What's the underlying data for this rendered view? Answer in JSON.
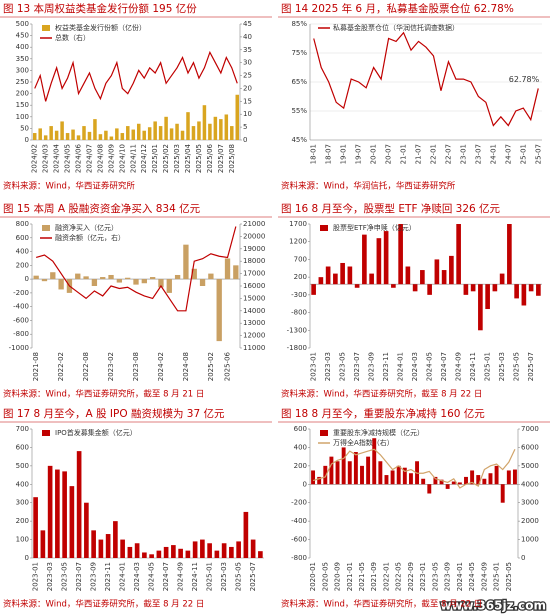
{
  "chart_data": [
    {
      "type": "combo",
      "title": "图 13 本周权益类基金发行份额 195 亿份",
      "source": "资料来源：Wind，华西证券研究所",
      "categories": [
        "2024/02",
        null,
        "2024/03",
        null,
        "2024/04",
        null,
        "2024/05",
        null,
        "2024/06",
        null,
        "2024/07",
        null,
        "2024/08",
        null,
        "2024/09",
        null,
        "2024/10",
        null,
        "2024/11",
        null,
        "2024/12",
        null,
        "2025/01",
        null,
        "2025/02",
        null,
        "2025/03",
        null,
        "2025/04",
        null,
        "2025/05",
        null,
        "2025/06",
        null,
        "2025/07",
        null,
        "2025/08",
        null
      ],
      "series": [
        {
          "name": "权益类基金发行份额（亿份）",
          "type": "bar",
          "color": "#d9a520",
          "values": [
            30,
            50,
            20,
            60,
            40,
            80,
            30,
            45,
            20,
            60,
            35,
            90,
            25,
            40,
            15,
            50,
            30,
            60,
            45,
            70,
            40,
            55,
            80,
            60,
            100,
            50,
            70,
            40,
            120,
            60,
            80,
            150,
            70,
            100,
            90,
            110,
            60,
            195
          ]
        },
        {
          "name": "总数（右）",
          "type": "line",
          "axis": "y2",
          "color": "#c00000",
          "values": [
            20,
            25,
            15,
            22,
            28,
            20,
            24,
            30,
            18,
            22,
            26,
            20,
            16,
            22,
            25,
            30,
            20,
            18,
            22,
            27,
            24,
            28,
            26,
            30,
            22,
            25,
            28,
            32,
            26,
            30,
            24,
            28,
            34,
            30,
            26,
            32,
            28,
            22
          ]
        }
      ],
      "ylim": [
        0,
        500
      ],
      "yticks": [
        0,
        50,
        100,
        150,
        200,
        250,
        300,
        350,
        400,
        450,
        500
      ],
      "y2lim": [
        0,
        45
      ],
      "y2ticks": [
        0,
        5,
        10,
        15,
        20,
        25,
        30,
        35,
        40,
        45
      ],
      "grid": false
    },
    {
      "type": "line",
      "title": "图 14 2025 年 6 月，私募基金股票仓位 62.78%",
      "source": "资料来源：Wind，华润信托，华西证券研究所",
      "categories": [
        "18-01",
        null,
        "18-07",
        null,
        "19-01",
        null,
        "19-07",
        null,
        "20-01",
        null,
        "20-07",
        null,
        "21-01",
        null,
        "21-07",
        null,
        "22-01",
        null,
        "22-07",
        null,
        "23-01",
        null,
        "23-07",
        null,
        "24-01",
        null,
        "24-07",
        null,
        "25-01",
        null,
        "25-07"
      ],
      "series": [
        {
          "name": "私募基金股票仓位（华润信托调查数据）",
          "color": "#c00000",
          "values": [
            80,
            70,
            65,
            58,
            56,
            66,
            65,
            63,
            70,
            66,
            80,
            79,
            82,
            76,
            79,
            77,
            74,
            62,
            72,
            66,
            66,
            65,
            60,
            58,
            50,
            53,
            50,
            55,
            56,
            52,
            62.78
          ]
        }
      ],
      "annotation": "62.78%",
      "ylim": [
        45,
        85
      ],
      "yticks": [
        {
          "value": 45,
          "label": "45%"
        },
        {
          "value": 55,
          "label": "55%"
        },
        {
          "value": 65,
          "label": "65%"
        },
        {
          "value": 75,
          "label": "75%"
        },
        {
          "value": 85,
          "label": "85%"
        }
      ],
      "grid": true
    },
    {
      "type": "combo",
      "title": "图 15 本周 A 股融资资金净买入 834 亿元",
      "source": "资料来源：Wind，华西证券研究所，截至 8 月 21 日",
      "categories": [
        "2021-08",
        null,
        null,
        "2022-02",
        null,
        null,
        "2022-08",
        null,
        null,
        "2023-02",
        null,
        null,
        "2023-08",
        null,
        null,
        "2024-02",
        null,
        null,
        "2024-08",
        null,
        null,
        "2025-02",
        null,
        "2025-06",
        null
      ],
      "series": [
        {
          "name": "融资净买入（亿元）",
          "type": "bar",
          "color": "#c9a063",
          "values": [
            50,
            -30,
            100,
            -150,
            -200,
            80,
            40,
            -100,
            30,
            60,
            -50,
            20,
            -80,
            -60,
            30,
            -120,
            -200,
            60,
            500,
            150,
            -100,
            80,
            -900,
            300,
            200
          ]
        },
        {
          "name": "融资余额（亿元，右）",
          "type": "line",
          "axis": "y2",
          "color": "#c00000",
          "values": [
            18300,
            18500,
            18000,
            17000,
            16000,
            15500,
            15000,
            15600,
            15200,
            16000,
            15800,
            15900,
            15500,
            15200,
            15000,
            16000,
            15000,
            14000,
            14000,
            18000,
            18200,
            18600,
            18400,
            18300,
            20800
          ]
        }
      ],
      "ylim": [
        -1000,
        800
      ],
      "yticks": [
        -1000,
        -800,
        -600,
        -400,
        -200,
        0,
        200,
        400,
        600,
        800
      ],
      "y2lim": [
        11000,
        21000
      ],
      "y2ticks": [
        11000,
        12000,
        13000,
        14000,
        15000,
        16000,
        17000,
        18000,
        19000,
        20000,
        21000
      ],
      "grid": false
    },
    {
      "type": "bar",
      "title": "图 16 8 月至今，股票型 ETF 净赎回 326 亿元",
      "source": "资料来源：Wind，华西证券研究所，截至 8 月 22 日",
      "categories": [
        "2023-01",
        null,
        "2023-03",
        null,
        "2023-05",
        null,
        "2023-07",
        null,
        "2023-09",
        null,
        "2023-11",
        null,
        "2024-01",
        null,
        "2024-03",
        null,
        "2024-05",
        null,
        "2024-07",
        null,
        "2024-09",
        null,
        "2024-11",
        null,
        "2025-01",
        null,
        "2025-03",
        null,
        "2025-05",
        null,
        "2025-07",
        null
      ],
      "series": [
        {
          "name": "股票型ETF净申赎（亿元）",
          "color": "#c00000",
          "values": [
            -300,
            200,
            500,
            300,
            600,
            500,
            -100,
            1400,
            300,
            1300,
            1500,
            -100,
            1700,
            500,
            -200,
            400,
            -300,
            700,
            400,
            800,
            1700,
            -300,
            -200,
            -1300,
            -700,
            -200,
            300,
            1700,
            -400,
            -600,
            -200,
            -326
          ]
        }
      ],
      "ylim": [
        -1800,
        1700
      ],
      "yticks": [
        -1800,
        -1300,
        -800,
        -300,
        200,
        700,
        1200,
        1700
      ],
      "grid": false
    },
    {
      "type": "bar",
      "title": "图 17 8 月至今，A 股 IPO 融资规模为 37 亿元",
      "source": "资料来源：Wind，华西证券研究所，截至 8 月 22 日",
      "categories": [
        "2023-01",
        null,
        "2023-03",
        null,
        "2023-05",
        null,
        "2023-07",
        null,
        "2023-09",
        null,
        "2023-11",
        null,
        "2024-01",
        null,
        "2024-03",
        null,
        "2024-05",
        null,
        "2024-07",
        null,
        "2024-09",
        null,
        "2024-11",
        null,
        "2025-01",
        null,
        "2025-03",
        null,
        "2025-05",
        null,
        "2025-07",
        null
      ],
      "series": [
        {
          "name": "IPO首发募集金额（亿元）",
          "color": "#c00000",
          "values": [
            330,
            150,
            500,
            480,
            470,
            390,
            580,
            300,
            150,
            100,
            130,
            200,
            100,
            60,
            80,
            30,
            20,
            40,
            60,
            70,
            50,
            40,
            90,
            100,
            80,
            40,
            80,
            60,
            90,
            250,
            100,
            37
          ]
        }
      ],
      "ylim": [
        0,
        700
      ],
      "yticks": [
        0,
        100,
        200,
        300,
        400,
        500,
        600,
        700
      ],
      "grid": false
    },
    {
      "type": "combo",
      "title": "图 18 8 月至今，重要股东净减持 160 亿元",
      "source": "资料来源：Wind，华西证券研究所，截至 8 月 22 日",
      "categories": [
        "2020-01",
        null,
        "2020-05",
        null,
        "2020-09",
        null,
        "2021-01",
        null,
        "2021-05",
        null,
        "2021-09",
        null,
        "2022-01",
        null,
        "2022-05",
        null,
        "2022-09",
        null,
        "2023-01",
        null,
        "2023-05",
        null,
        "2023-09",
        null,
        "2024-01",
        null,
        "2024-05",
        null,
        "2024-09",
        null,
        "2025-01",
        null,
        "2025-05",
        null
      ],
      "series": [
        {
          "name": "重要股东净减持规模（亿元）",
          "type": "bar",
          "color": "#c00000",
          "values": [
            150,
            80,
            200,
            300,
            250,
            400,
            250,
            350,
            200,
            300,
            500,
            250,
            100,
            150,
            200,
            180,
            120,
            250,
            60,
            -100,
            80,
            50,
            -50,
            30,
            20,
            80,
            150,
            100,
            60,
            120,
            200,
            -200,
            150,
            160
          ]
        },
        {
          "name": "万得全A指数（右）",
          "type": "line",
          "axis": "y2",
          "color": "#d1a46a",
          "values": [
            4200,
            4300,
            4400,
            5100,
            5300,
            5400,
            5800,
            5600,
            5700,
            5800,
            5900,
            5600,
            5200,
            4800,
            5000,
            4700,
            4800,
            4600,
            4600,
            4700,
            4300,
            4200,
            4100,
            4300,
            3800,
            4000,
            4100,
            3900,
            4800,
            5000,
            5100,
            4800,
            5200,
            5900
          ]
        }
      ],
      "ylim": [
        -800,
        600
      ],
      "yticks": [
        -800,
        -600,
        -400,
        -200,
        0,
        200,
        400,
        600
      ],
      "y2lim": [
        0,
        7000
      ],
      "y2ticks": [
        0,
        1000,
        2000,
        3000,
        4000,
        5000,
        6000,
        7000
      ],
      "grid": false
    }
  ],
  "watermark": "www.365jz.com"
}
